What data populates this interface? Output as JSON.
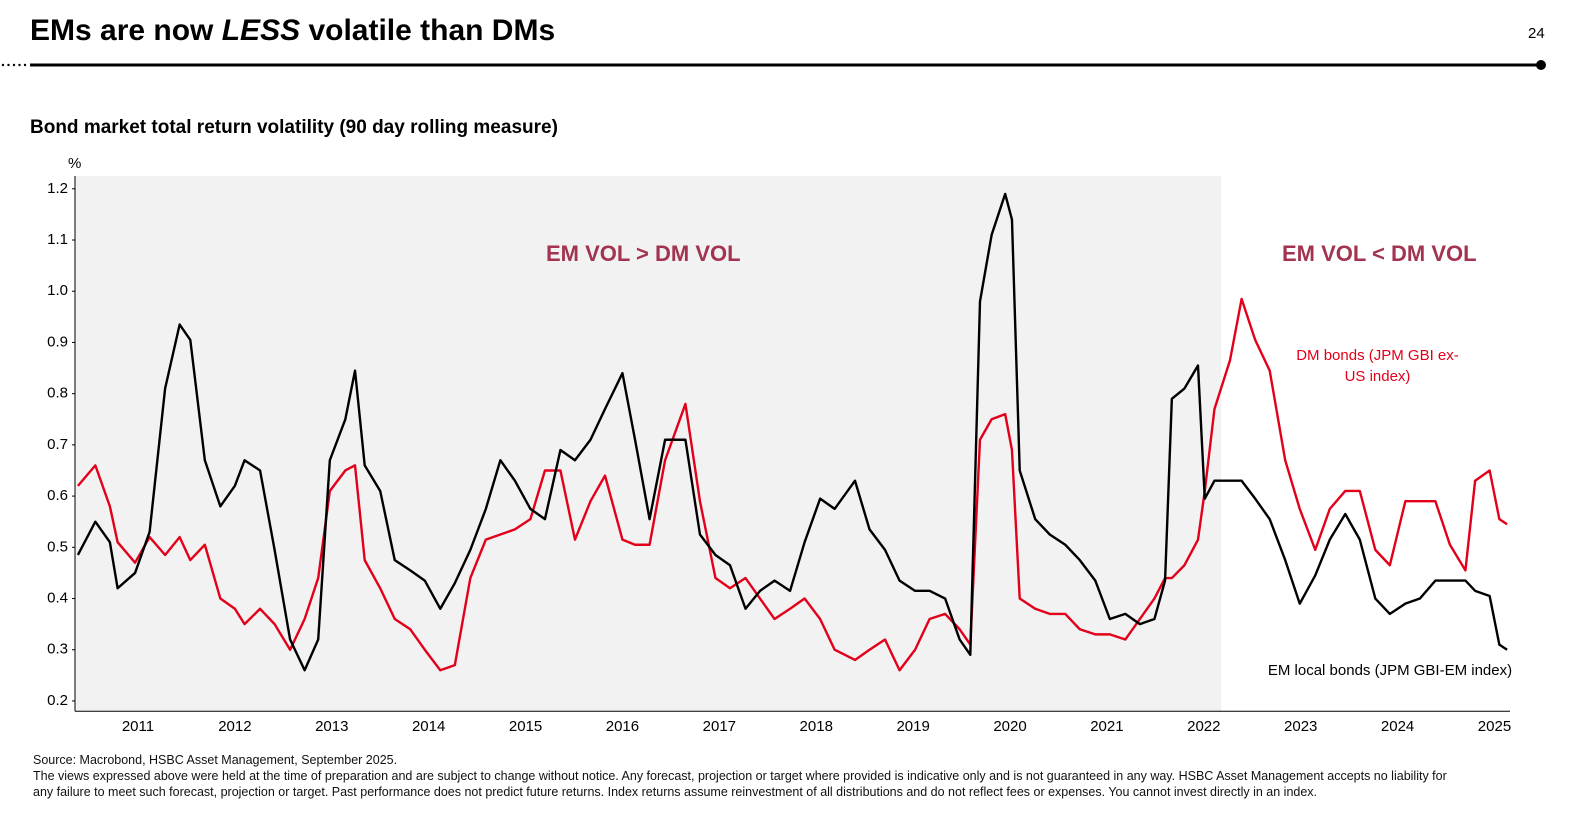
{
  "header": {
    "title": {
      "before": "EMs are now",
      "emphasis": "LESS",
      "after": "volatile than DMs"
    },
    "page_number": "24"
  },
  "chart_data": {
    "type": "line",
    "title": "Bond market total return volatility (90 day rolling measure)",
    "y_unit": "%",
    "annotations": [
      "EM VOL > DM VOL",
      "EM VOL < DM VOL"
    ],
    "annotation_color": "#a3344f",
    "shaded_xlim": [
      2010.85,
      2022.68
    ],
    "shade_color": "#f2f2f2",
    "xlim": [
      2010.85,
      2025.66
    ],
    "xticks": [
      {
        "value": 2011.5,
        "label": "2011"
      },
      {
        "value": 2012.5,
        "label": "2012"
      },
      {
        "value": 2013.5,
        "label": "2013"
      },
      {
        "value": 2014.5,
        "label": "2014"
      },
      {
        "value": 2015.5,
        "label": "2015"
      },
      {
        "value": 2016.5,
        "label": "2016"
      },
      {
        "value": 2017.5,
        "label": "2017"
      },
      {
        "value": 2018.5,
        "label": "2018"
      },
      {
        "value": 2019.5,
        "label": "2019"
      },
      {
        "value": 2020.5,
        "label": "2020"
      },
      {
        "value": 2021.5,
        "label": "2021"
      },
      {
        "value": 2022.5,
        "label": "2022"
      },
      {
        "value": 2023.5,
        "label": "2023"
      },
      {
        "value": 2024.5,
        "label": "2024"
      },
      {
        "value": 2025.5,
        "label": "2025"
      }
    ],
    "ylim": [
      0.18,
      1.225
    ],
    "yticks": [
      0.2,
      0.3,
      0.4,
      0.5,
      0.6,
      0.7,
      0.8,
      0.9,
      {
        "value": 1,
        "label": "1.0"
      },
      1.1,
      1.2
    ],
    "grid": false,
    "x": [
      2010.88,
      2011.06,
      2011.21,
      2011.29,
      2011.47,
      2011.62,
      2011.78,
      2011.93,
      2012.04,
      2012.19,
      2012.35,
      2012.5,
      2012.6,
      2012.76,
      2012.91,
      2013.07,
      2013.22,
      2013.36,
      2013.48,
      2013.64,
      2013.74,
      2013.84,
      2014.0,
      2014.15,
      2014.31,
      2014.46,
      2014.62,
      2014.77,
      2014.93,
      2015.09,
      2015.24,
      2015.39,
      2015.55,
      2015.7,
      2015.86,
      2016.01,
      2016.17,
      2016.32,
      2016.5,
      2016.63,
      2016.78,
      2016.94,
      2017.15,
      2017.3,
      2017.46,
      2017.61,
      2017.77,
      2017.92,
      2018.07,
      2018.23,
      2018.38,
      2018.54,
      2018.69,
      2018.9,
      2019.05,
      2019.21,
      2019.36,
      2019.52,
      2019.67,
      2019.83,
      2019.98,
      2020.09,
      2020.19,
      2020.31,
      2020.45,
      2020.52,
      2020.6,
      2020.76,
      2020.91,
      2021.07,
      2021.22,
      2021.38,
      2021.53,
      2021.69,
      2021.84,
      2021.99,
      2022.1,
      2022.17,
      2022.3,
      2022.44,
      2022.51,
      2022.61,
      2022.77,
      2022.89,
      2023.03,
      2023.18,
      2023.34,
      2023.49,
      2023.65,
      2023.8,
      2023.96,
      2024.11,
      2024.27,
      2024.42,
      2024.58,
      2024.73,
      2024.89,
      2025.04,
      2025.2,
      2025.3,
      2025.45,
      2025.55,
      2025.63
    ],
    "series": [
      {
        "name": "DM bonds (JPM GBI ex-US index)",
        "color": "#e2001a",
        "values": [
          0.62,
          0.66,
          0.58,
          0.51,
          0.47,
          0.52,
          0.485,
          0.52,
          0.475,
          0.505,
          0.4,
          0.38,
          0.35,
          0.38,
          0.35,
          0.3,
          0.36,
          0.44,
          0.61,
          0.65,
          0.66,
          0.475,
          0.42,
          0.36,
          0.34,
          0.3,
          0.26,
          0.27,
          0.44,
          0.515,
          0.525,
          0.535,
          0.555,
          0.65,
          0.65,
          0.515,
          0.59,
          0.64,
          0.515,
          0.505,
          0.505,
          0.67,
          0.78,
          0.59,
          0.44,
          0.42,
          0.44,
          0.4,
          0.36,
          0.38,
          0.4,
          0.36,
          0.3,
          0.28,
          0.3,
          0.32,
          0.26,
          0.3,
          0.36,
          0.37,
          0.34,
          0.31,
          0.71,
          0.75,
          0.76,
          0.69,
          0.4,
          0.38,
          0.37,
          0.37,
          0.34,
          0.33,
          0.33,
          0.32,
          0.36,
          0.4,
          0.44,
          0.44,
          0.465,
          0.515,
          0.61,
          0.77,
          0.865,
          0.985,
          0.905,
          0.845,
          0.67,
          0.575,
          0.495,
          0.575,
          0.61,
          0.61,
          0.495,
          0.465,
          0.59,
          0.59,
          0.59,
          0.505,
          0.455,
          0.63,
          0.65,
          0.555,
          0.545
        ]
      },
      {
        "name": "EM local bonds (JPM GBI-EM index)",
        "color": "#000000",
        "values": [
          0.485,
          0.55,
          0.51,
          0.42,
          0.45,
          0.53,
          0.81,
          0.935,
          0.905,
          0.67,
          0.58,
          0.62,
          0.67,
          0.65,
          0.495,
          0.32,
          0.26,
          0.32,
          0.67,
          0.75,
          0.845,
          0.66,
          0.61,
          0.475,
          0.455,
          0.435,
          0.38,
          0.43,
          0.495,
          0.575,
          0.67,
          0.63,
          0.575,
          0.555,
          0.69,
          0.67,
          0.71,
          0.77,
          0.84,
          0.71,
          0.555,
          0.71,
          0.71,
          0.525,
          0.485,
          0.465,
          0.38,
          0.415,
          0.435,
          0.415,
          0.51,
          0.595,
          0.575,
          0.63,
          0.535,
          0.495,
          0.435,
          0.415,
          0.415,
          0.4,
          0.32,
          0.29,
          0.98,
          1.11,
          1.19,
          1.14,
          0.65,
          0.555,
          0.525,
          0.505,
          0.475,
          0.435,
          0.36,
          0.37,
          0.35,
          0.36,
          0.435,
          0.79,
          0.81,
          0.855,
          0.595,
          0.63,
          0.63,
          0.63,
          0.595,
          0.555,
          0.475,
          0.39,
          0.445,
          0.515,
          0.565,
          0.515,
          0.4,
          0.37,
          0.39,
          0.4,
          0.435,
          0.435,
          0.435,
          0.415,
          0.405,
          0.31,
          0.3
        ]
      }
    ]
  },
  "footer": {
    "source": "Source: Macrobond, HSBC Asset Management, September 2025.",
    "disclaimer": "The views expressed above were held at the time of preparation and are subject to change without notice. Any forecast, projection or target where provided is indicative only and is not guaranteed in any way. HSBC Asset Management accepts no liability for any failure to meet such forecast, projection or target. Past performance does not predict future returns. Index returns assume reinvestment of all distributions and do not reflect fees or expenses. You cannot invest directly in an index."
  }
}
